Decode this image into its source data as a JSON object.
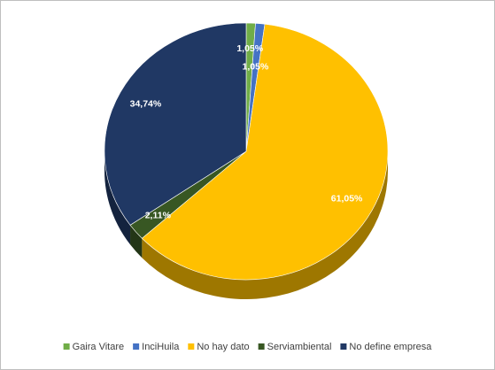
{
  "chart_data": {
    "type": "pie",
    "categories": [
      "Gaira Vitare",
      "InciHuila",
      "No hay dato",
      "Serviambiental",
      "No define empresa"
    ],
    "values": [
      1.05,
      1.05,
      61.05,
      2.11,
      34.74
    ],
    "value_labels": [
      "1,05%",
      "1,05%",
      "61,05%",
      "2,11%",
      "34,74%"
    ],
    "colors": [
      "#70ad47",
      "#4472c4",
      "#ffc000",
      "#385723",
      "#203864"
    ],
    "legend": "bottom"
  }
}
